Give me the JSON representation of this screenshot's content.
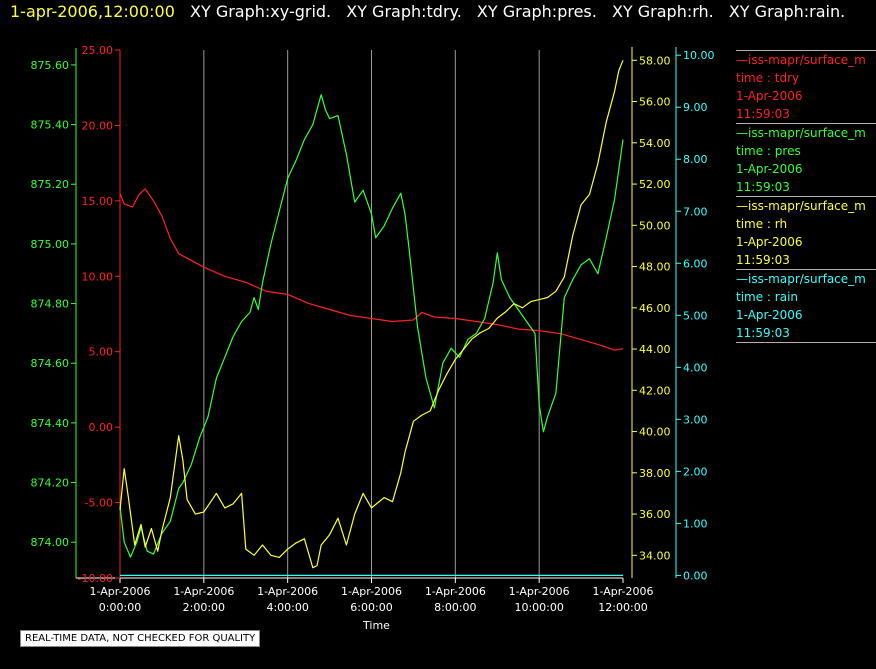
{
  "header": {
    "timestamp": "1-apr-2006,12:00:00",
    "graphs": [
      "XY Graph:xy-grid.",
      "XY Graph:tdry.",
      "XY Graph:pres.",
      "XY Graph:rh.",
      "XY Graph:rain."
    ]
  },
  "legend": [
    {
      "name": "—iss-mapr/surface_m",
      "var": "time : tdry",
      "date": "1-Apr-2006",
      "time": "11:59:03",
      "color": "#ff2020"
    },
    {
      "name": "—iss-mapr/surface_m",
      "var": "time : pres",
      "date": "1-Apr-2006",
      "time": "11:59:03",
      "color": "#33ff33"
    },
    {
      "name": "—iss-mapr/surface_m",
      "var": "time : rh",
      "date": "1-Apr-2006",
      "time": "11:59:03",
      "color": "#ffff33"
    },
    {
      "name": "—iss-mapr/surface_m",
      "var": "time : rain",
      "date": "1-Apr-2006",
      "time": "11:59:03",
      "color": "#33ffff"
    }
  ],
  "note": "REAL-TIME DATA, NOT CHECKED FOR QUALITY",
  "chart_data": {
    "type": "line",
    "xlabel": "Time",
    "x_unit": "hours",
    "xlim": [
      0,
      12
    ],
    "x_ticks": [
      {
        "x": 0,
        "date": "1-Apr-2006",
        "time": "0:00:00"
      },
      {
        "x": 2,
        "date": "1-Apr-2006",
        "time": "2:00:00"
      },
      {
        "x": 4,
        "date": "1-Apr-2006",
        "time": "4:00:00"
      },
      {
        "x": 6,
        "date": "1-Apr-2006",
        "time": "6:00:00"
      },
      {
        "x": 8,
        "date": "1-Apr-2006",
        "time": "8:00:00"
      },
      {
        "x": 10,
        "date": "1-Apr-2006",
        "time": "10:00:00"
      },
      {
        "x": 12,
        "date": "1-Apr-2006",
        "time": "12:00:00"
      }
    ],
    "grid": "vertical",
    "axes": [
      {
        "id": "pres",
        "side": "left",
        "color": "#33ff33",
        "range": [
          873.88,
          875.65
        ],
        "ticks": [
          "874.00",
          "874.20",
          "874.40",
          "874.60",
          "874.80",
          "875.00",
          "875.20",
          "875.40",
          "875.60"
        ]
      },
      {
        "id": "tdry",
        "side": "left",
        "color": "#ff2020",
        "range": [
          -10,
          25
        ],
        "ticks": [
          "-10.00",
          "-5.00",
          "0.00",
          "5.00",
          "10.00",
          "15.00",
          "20.00",
          "25.00"
        ]
      },
      {
        "id": "rh",
        "side": "right",
        "color": "#ffff33",
        "range": [
          32.9,
          58.5
        ],
        "ticks": [
          "34.00",
          "36.00",
          "38.00",
          "40.00",
          "42.00",
          "44.00",
          "46.00",
          "48.00",
          "50.00",
          "52.00",
          "54.00",
          "56.00",
          "58.00"
        ]
      },
      {
        "id": "rain",
        "side": "right",
        "color": "#33ffff",
        "range": [
          -0.05,
          10.1
        ],
        "ticks": [
          "0.00",
          "1.00",
          "2.00",
          "3.00",
          "4.00",
          "5.00",
          "6.00",
          "7.00",
          "8.00",
          "9.00",
          "10.00"
        ]
      }
    ],
    "series": [
      {
        "axis": "tdry",
        "color": "#ff2020",
        "points": [
          [
            0,
            15.5
          ],
          [
            0.1,
            14.8
          ],
          [
            0.3,
            14.6
          ],
          [
            0.45,
            15.4
          ],
          [
            0.6,
            15.8
          ],
          [
            0.8,
            15.0
          ],
          [
            1.0,
            14.0
          ],
          [
            1.2,
            12.5
          ],
          [
            1.4,
            11.5
          ],
          [
            1.6,
            11.2
          ],
          [
            2.0,
            10.6
          ],
          [
            2.5,
            10.0
          ],
          [
            3.0,
            9.6
          ],
          [
            3.5,
            9.0
          ],
          [
            4.0,
            8.8
          ],
          [
            4.5,
            8.2
          ],
          [
            5.0,
            7.8
          ],
          [
            5.5,
            7.4
          ],
          [
            6.0,
            7.2
          ],
          [
            6.5,
            7.0
          ],
          [
            7.0,
            7.1
          ],
          [
            7.2,
            7.6
          ],
          [
            7.5,
            7.3
          ],
          [
            8.0,
            7.2
          ],
          [
            8.5,
            7.0
          ],
          [
            9.0,
            6.8
          ],
          [
            9.5,
            6.5
          ],
          [
            10.0,
            6.4
          ],
          [
            10.5,
            6.2
          ],
          [
            11.0,
            5.8
          ],
          [
            11.5,
            5.4
          ],
          [
            11.8,
            5.1
          ],
          [
            12,
            5.2
          ]
        ]
      },
      {
        "axis": "pres",
        "color": "#33ff33",
        "points": [
          [
            0,
            874.12
          ],
          [
            0.1,
            874.0
          ],
          [
            0.25,
            873.95
          ],
          [
            0.4,
            874.0
          ],
          [
            0.5,
            874.05
          ],
          [
            0.65,
            873.97
          ],
          [
            0.8,
            873.96
          ],
          [
            1.0,
            874.03
          ],
          [
            1.2,
            874.07
          ],
          [
            1.4,
            874.18
          ],
          [
            1.5,
            874.2
          ],
          [
            1.7,
            874.26
          ],
          [
            1.9,
            874.35
          ],
          [
            2.1,
            874.42
          ],
          [
            2.3,
            874.55
          ],
          [
            2.5,
            874.62
          ],
          [
            2.7,
            874.69
          ],
          [
            2.9,
            874.74
          ],
          [
            3.1,
            874.77
          ],
          [
            3.2,
            874.82
          ],
          [
            3.3,
            874.78
          ],
          [
            3.4,
            874.87
          ],
          [
            3.6,
            875.0
          ],
          [
            3.8,
            875.11
          ],
          [
            4.0,
            875.22
          ],
          [
            4.2,
            875.28
          ],
          [
            4.4,
            875.35
          ],
          [
            4.6,
            875.4
          ],
          [
            4.8,
            875.5
          ],
          [
            4.9,
            875.45
          ],
          [
            5.0,
            875.42
          ],
          [
            5.2,
            875.43
          ],
          [
            5.4,
            875.3
          ],
          [
            5.6,
            875.14
          ],
          [
            5.8,
            875.18
          ],
          [
            6.0,
            875.1
          ],
          [
            6.1,
            875.02
          ],
          [
            6.3,
            875.06
          ],
          [
            6.5,
            875.12
          ],
          [
            6.7,
            875.17
          ],
          [
            6.8,
            875.1
          ],
          [
            6.9,
            874.98
          ],
          [
            7.1,
            874.72
          ],
          [
            7.3,
            874.55
          ],
          [
            7.5,
            874.45
          ],
          [
            7.7,
            874.6
          ],
          [
            7.9,
            874.65
          ],
          [
            8.1,
            874.62
          ],
          [
            8.3,
            874.68
          ],
          [
            8.5,
            874.7
          ],
          [
            8.7,
            874.75
          ],
          [
            8.9,
            874.87
          ],
          [
            9.0,
            874.97
          ],
          [
            9.1,
            874.88
          ],
          [
            9.3,
            874.82
          ],
          [
            9.5,
            874.78
          ],
          [
            9.7,
            874.74
          ],
          [
            9.9,
            874.7
          ],
          [
            10.0,
            874.46
          ],
          [
            10.1,
            874.37
          ],
          [
            10.2,
            874.42
          ],
          [
            10.4,
            874.5
          ],
          [
            10.6,
            874.82
          ],
          [
            10.8,
            874.88
          ],
          [
            11.0,
            874.93
          ],
          [
            11.2,
            874.95
          ],
          [
            11.4,
            874.9
          ],
          [
            11.6,
            875.02
          ],
          [
            11.8,
            875.15
          ],
          [
            11.9,
            875.25
          ],
          [
            12,
            875.35
          ]
        ]
      },
      {
        "axis": "rh",
        "color": "#ffff33",
        "points": [
          [
            0,
            36.2
          ],
          [
            0.1,
            38.2
          ],
          [
            0.2,
            36.8
          ],
          [
            0.35,
            34.5
          ],
          [
            0.5,
            35.5
          ],
          [
            0.6,
            34.4
          ],
          [
            0.75,
            35.3
          ],
          [
            0.9,
            34.2
          ],
          [
            1.0,
            35.2
          ],
          [
            1.2,
            36.8
          ],
          [
            1.4,
            39.8
          ],
          [
            1.5,
            38.6
          ],
          [
            1.6,
            36.7
          ],
          [
            1.8,
            36.0
          ],
          [
            2.0,
            36.1
          ],
          [
            2.3,
            37.0
          ],
          [
            2.5,
            36.3
          ],
          [
            2.7,
            36.5
          ],
          [
            2.9,
            37.0
          ],
          [
            3.0,
            34.3
          ],
          [
            3.2,
            34.0
          ],
          [
            3.4,
            34.5
          ],
          [
            3.6,
            34.0
          ],
          [
            3.8,
            33.9
          ],
          [
            4.0,
            34.3
          ],
          [
            4.2,
            34.6
          ],
          [
            4.4,
            34.8
          ],
          [
            4.6,
            33.4
          ],
          [
            4.7,
            33.5
          ],
          [
            4.8,
            34.5
          ],
          [
            5.0,
            35.0
          ],
          [
            5.2,
            35.8
          ],
          [
            5.4,
            34.5
          ],
          [
            5.6,
            36.0
          ],
          [
            5.8,
            37.0
          ],
          [
            6.0,
            36.3
          ],
          [
            6.3,
            36.8
          ],
          [
            6.5,
            36.6
          ],
          [
            6.7,
            38.0
          ],
          [
            6.8,
            39.0
          ],
          [
            7.0,
            40.5
          ],
          [
            7.2,
            40.8
          ],
          [
            7.4,
            41.0
          ],
          [
            7.6,
            42.0
          ],
          [
            7.8,
            42.8
          ],
          [
            8.0,
            43.5
          ],
          [
            8.2,
            44.0
          ],
          [
            8.4,
            44.5
          ],
          [
            8.6,
            44.8
          ],
          [
            8.8,
            45.0
          ],
          [
            9.0,
            45.5
          ],
          [
            9.2,
            45.8
          ],
          [
            9.4,
            46.2
          ],
          [
            9.6,
            46.0
          ],
          [
            9.8,
            46.3
          ],
          [
            10.0,
            46.4
          ],
          [
            10.2,
            46.5
          ],
          [
            10.4,
            46.8
          ],
          [
            10.6,
            47.5
          ],
          [
            10.8,
            49.5
          ],
          [
            11.0,
            51.0
          ],
          [
            11.2,
            51.5
          ],
          [
            11.4,
            53.0
          ],
          [
            11.6,
            55.0
          ],
          [
            11.8,
            56.5
          ],
          [
            11.9,
            57.5
          ],
          [
            12,
            58.0
          ]
        ]
      },
      {
        "axis": "rain",
        "color": "#33ffff",
        "points": [
          [
            0,
            0
          ],
          [
            12,
            0
          ]
        ]
      }
    ]
  }
}
